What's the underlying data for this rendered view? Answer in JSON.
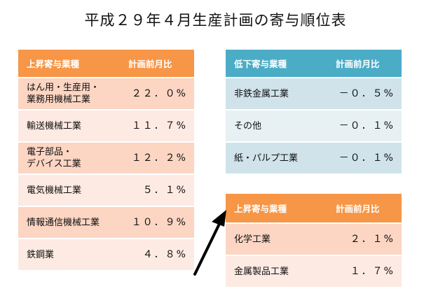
{
  "title": "平成２９年４月生産計画の寄与順位表",
  "left_table": {
    "header": {
      "category": "上昇寄与業種",
      "value": "計画前月比"
    },
    "rows": [
      {
        "category": "はん用・生産用・\n業務用機械工業",
        "value": "２２．０%"
      },
      {
        "category": "輸送機械工業",
        "value": "１１．７%"
      },
      {
        "category": "電子部品・\nデバイス工業",
        "value": "１２．２%"
      },
      {
        "category": "電気機械工業",
        "value": "５．１%"
      },
      {
        "category": "情報通信機械工業",
        "value": "１０．９%"
      },
      {
        "category": "鉄鋼業",
        "value": "４．８%"
      }
    ]
  },
  "right_top_table": {
    "header": {
      "category": "低下寄与業種",
      "value": "計画前月比"
    },
    "rows": [
      {
        "category": "非鉄金属工業",
        "value": "－０．５%"
      },
      {
        "category": "その他",
        "value": "－０．１%"
      },
      {
        "category": "紙・パルプ工業",
        "value": "－０．１%"
      }
    ]
  },
  "right_bottom_table": {
    "header": {
      "category": "上昇寄与業種",
      "value": "計画前月比"
    },
    "rows": [
      {
        "category": "化学工業",
        "value": "２．１%"
      },
      {
        "category": "金属製品工業",
        "value": "１．７%"
      }
    ]
  },
  "colors": {
    "orange_header": "#f79646",
    "orange_row_dark": "#fcd5c3",
    "orange_row_light": "#fdeae3",
    "blue_header": "#4bacc6",
    "blue_row_dark": "#d0e3ea",
    "blue_row_light": "#e7f1f4"
  }
}
